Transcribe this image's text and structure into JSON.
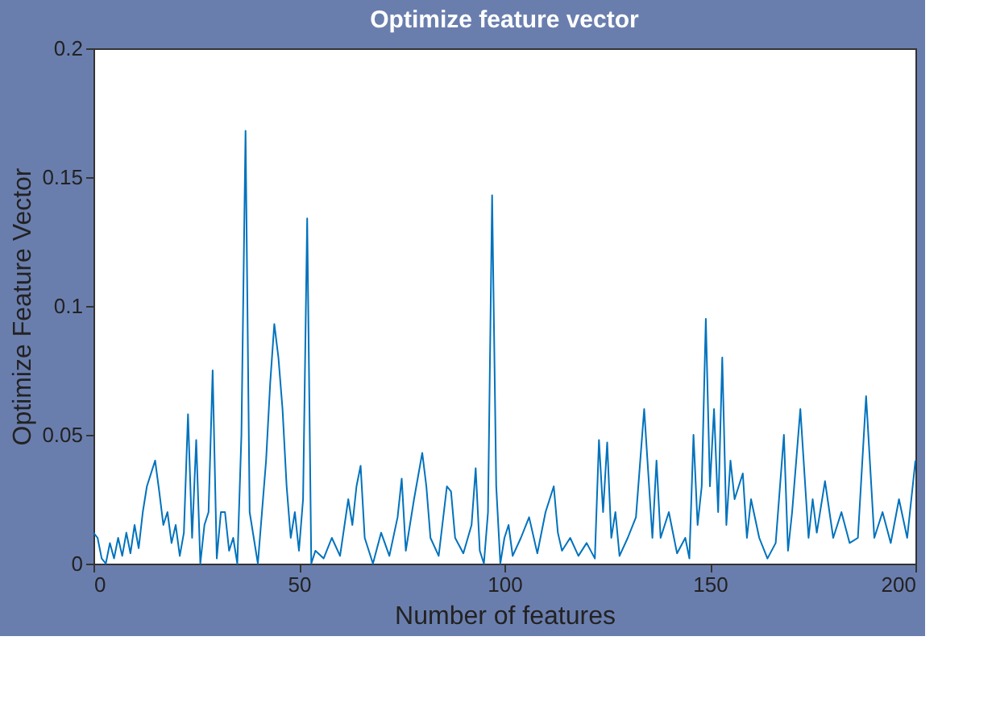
{
  "chart_data": {
    "type": "line",
    "title": "Optimize feature vector",
    "xlabel": "Number of features",
    "ylabel": "Optimize Feature Vector",
    "x": [
      0,
      1,
      2,
      3,
      4,
      5,
      6,
      7,
      8,
      9,
      10,
      11,
      12,
      13,
      14,
      15,
      16,
      17,
      18,
      19,
      20,
      21,
      22,
      23,
      24,
      25,
      26,
      27,
      28,
      29,
      30,
      31,
      32,
      33,
      34,
      35,
      36,
      37,
      38,
      39,
      40,
      41,
      42,
      43,
      44,
      45,
      46,
      47,
      48,
      49,
      50,
      51,
      52,
      53,
      54,
      56,
      58,
      60,
      62,
      63,
      64,
      65,
      66,
      67,
      68,
      70,
      72,
      74,
      75,
      76,
      78,
      80,
      81,
      82,
      84,
      86,
      87,
      88,
      90,
      92,
      93,
      94,
      95,
      96,
      97,
      98,
      99,
      100,
      101,
      102,
      104,
      106,
      108,
      110,
      112,
      113,
      114,
      116,
      118,
      120,
      122,
      123,
      124,
      125,
      126,
      127,
      128,
      130,
      132,
      134,
      136,
      137,
      138,
      140,
      142,
      144,
      145,
      146,
      147,
      148,
      149,
      150,
      151,
      152,
      153,
      154,
      155,
      156,
      157,
      158,
      159,
      160,
      162,
      164,
      166,
      168,
      169,
      170,
      172,
      174,
      175,
      176,
      178,
      180,
      182,
      184,
      186,
      188,
      190,
      192,
      194,
      196,
      198,
      200
    ],
    "series": [
      {
        "color": "#0072bd",
        "values": [
          0.012,
          0.01,
          0.002,
          0.0,
          0.008,
          0.002,
          0.01,
          0.003,
          0.012,
          0.004,
          0.015,
          0.006,
          0.02,
          0.03,
          0.035,
          0.04,
          0.028,
          0.015,
          0.02,
          0.008,
          0.015,
          0.003,
          0.012,
          0.058,
          0.01,
          0.048,
          0.0,
          0.015,
          0.02,
          0.075,
          0.002,
          0.02,
          0.02,
          0.005,
          0.01,
          0.0,
          0.05,
          0.168,
          0.02,
          0.01,
          0.0,
          0.02,
          0.04,
          0.07,
          0.093,
          0.08,
          0.06,
          0.03,
          0.01,
          0.02,
          0.005,
          0.025,
          0.134,
          0.0,
          0.005,
          0.002,
          0.01,
          0.003,
          0.025,
          0.015,
          0.03,
          0.038,
          0.01,
          0.005,
          0.0,
          0.012,
          0.003,
          0.018,
          0.033,
          0.005,
          0.025,
          0.043,
          0.03,
          0.01,
          0.003,
          0.03,
          0.028,
          0.01,
          0.004,
          0.015,
          0.037,
          0.005,
          0.0,
          0.02,
          0.143,
          0.03,
          0.0,
          0.01,
          0.015,
          0.003,
          0.01,
          0.018,
          0.004,
          0.02,
          0.03,
          0.012,
          0.005,
          0.01,
          0.003,
          0.008,
          0.002,
          0.048,
          0.02,
          0.047,
          0.01,
          0.02,
          0.003,
          0.01,
          0.018,
          0.06,
          0.01,
          0.04,
          0.01,
          0.02,
          0.004,
          0.01,
          0.002,
          0.05,
          0.015,
          0.03,
          0.095,
          0.03,
          0.06,
          0.02,
          0.08,
          0.015,
          0.04,
          0.025,
          0.03,
          0.035,
          0.01,
          0.025,
          0.01,
          0.002,
          0.008,
          0.05,
          0.005,
          0.02,
          0.06,
          0.01,
          0.025,
          0.012,
          0.032,
          0.01,
          0.02,
          0.008,
          0.01,
          0.065,
          0.01,
          0.02,
          0.008,
          0.025,
          0.01,
          0.04
        ]
      }
    ],
    "xlim": [
      0,
      200
    ],
    "xticks": [
      0,
      50,
      100,
      150,
      200
    ],
    "ylim": [
      0,
      0.2
    ],
    "yticks": [
      0,
      0.05,
      0.1,
      0.15,
      0.2
    ],
    "grid": false,
    "legend": false
  }
}
